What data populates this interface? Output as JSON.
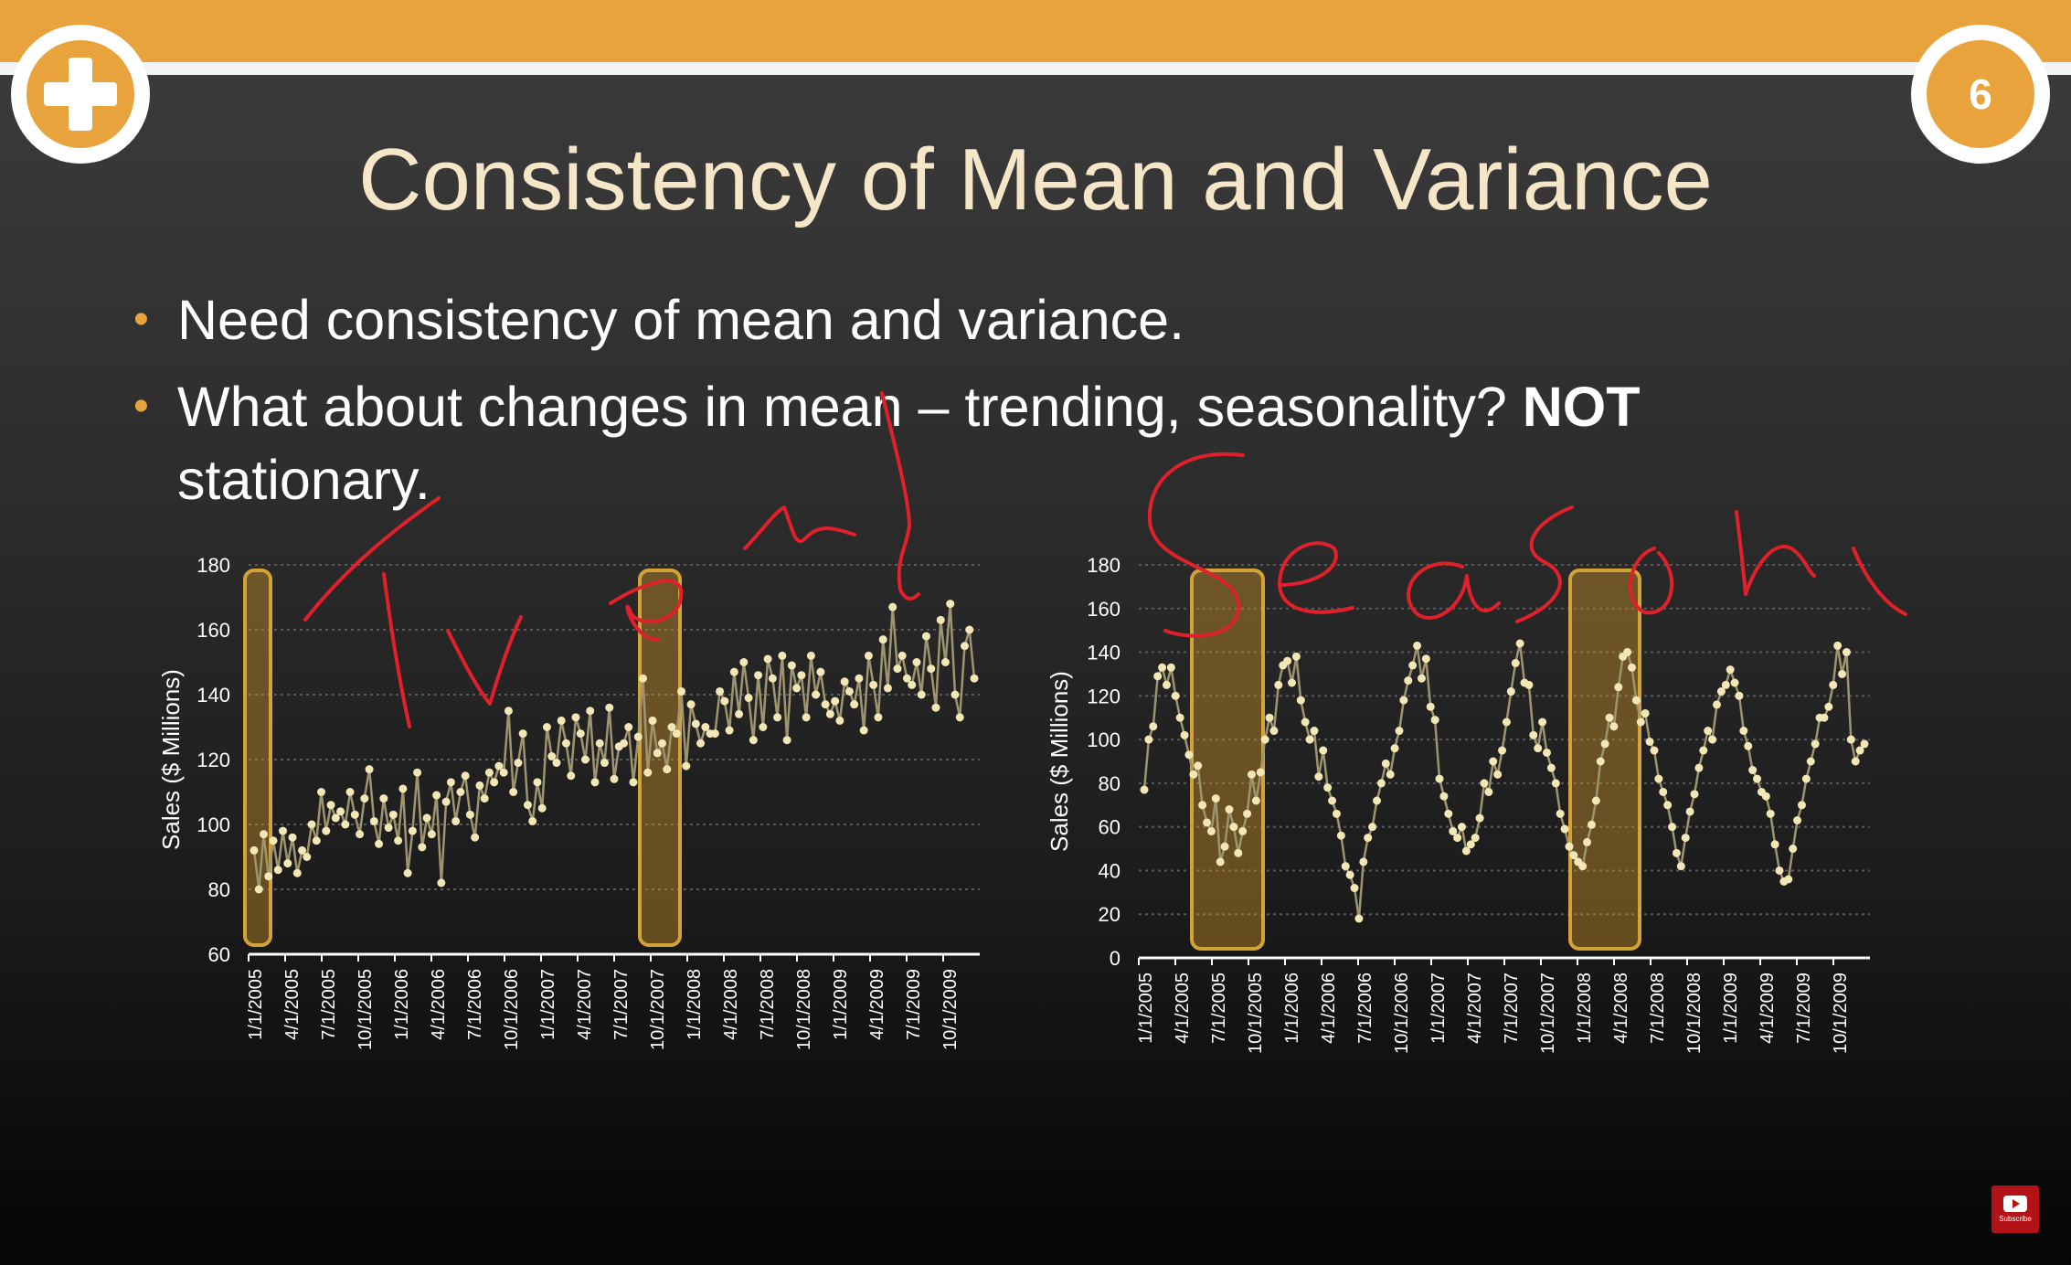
{
  "slide": {
    "number": "6",
    "title": "Consistency of Mean and Variance",
    "bullets": [
      {
        "text": "Need consistency of mean and variance."
      },
      {
        "text": "What about changes in mean – trending, seasonality? ",
        "bold": "NOT",
        "continuation": "stationary."
      }
    ],
    "icons": [
      "plus-icon",
      "youtube-subscribe-icon"
    ],
    "subscribe_label": "Subscribe",
    "handwriting": [
      "Trend",
      "Season"
    ]
  },
  "colors": {
    "accent": "#e8a33d",
    "title_text": "#f5e6c8",
    "data_line": "#9e9470",
    "data_point": "#f3e7b5",
    "highlight_fill": "rgba(224,160,40,0.38)",
    "highlight_border": "#d4a338",
    "ink": "#e0202a"
  },
  "chart_data": [
    {
      "type": "line",
      "ylabel": "Sales ($ Millions)",
      "ylim": [
        60,
        180
      ],
      "yticks": [
        60,
        80,
        100,
        120,
        140,
        160,
        180
      ],
      "xticks": [
        "1/1/2005",
        "4/1/2005",
        "7/1/2005",
        "10/1/2005",
        "1/1/2006",
        "4/1/2006",
        "7/1/2006",
        "10/1/2006",
        "1/1/2007",
        "4/1/2007",
        "7/1/2007",
        "10/1/2007",
        "1/1/2008",
        "4/1/2008",
        "7/1/2008",
        "10/1/2008",
        "1/1/2009",
        "4/1/2009",
        "7/1/2009",
        "10/1/2009"
      ],
      "grid": true,
      "highlights": [
        [
          0.0,
          0.5
        ],
        [
          10.8,
          11.7
        ]
      ],
      "values": [
        92,
        80,
        97,
        84,
        95,
        86,
        98,
        88,
        96,
        85,
        92,
        90,
        100,
        95,
        110,
        98,
        106,
        102,
        104,
        100,
        110,
        103,
        97,
        108,
        117,
        101,
        94,
        108,
        99,
        103,
        95,
        111,
        85,
        98,
        116,
        93,
        102,
        97,
        109,
        82,
        107,
        113,
        101,
        110,
        115,
        103,
        96,
        112,
        108,
        116,
        113,
        118,
        116,
        135,
        110,
        119,
        128,
        106,
        101,
        113,
        105,
        130,
        121,
        119,
        132,
        125,
        115,
        133,
        128,
        120,
        135,
        113,
        125,
        119,
        136,
        114,
        124,
        125,
        130,
        113,
        127,
        145,
        116,
        132,
        122,
        125,
        117,
        130,
        128,
        141,
        118,
        137,
        131,
        125,
        130,
        128,
        128,
        141,
        138,
        129,
        147,
        134,
        150,
        139,
        126,
        146,
        130,
        151,
        145,
        133,
        152,
        126,
        149,
        142,
        146,
        133,
        152,
        140,
        147,
        137,
        134,
        138,
        132,
        144,
        141,
        137,
        145,
        129,
        152,
        143,
        133,
        157,
        142,
        167,
        148,
        152,
        145,
        143,
        150,
        140,
        158,
        148,
        136,
        163,
        150,
        168,
        140,
        133,
        155,
        160,
        145
      ]
    },
    {
      "type": "line",
      "ylabel": "Sales ($ Millions)",
      "ylim": [
        0,
        180
      ],
      "yticks": [
        0,
        20,
        40,
        60,
        80,
        100,
        120,
        140,
        160,
        180
      ],
      "xticks": [
        "1/1/2005",
        "4/1/2005",
        "7/1/2005",
        "10/1/2005",
        "1/1/2006",
        "4/1/2006",
        "7/1/2006",
        "10/1/2006",
        "1/1/2007",
        "4/1/2007",
        "7/1/2007",
        "10/1/2007",
        "1/1/2008",
        "4/1/2008",
        "7/1/2008",
        "10/1/2008",
        "1/1/2009",
        "4/1/2009",
        "7/1/2009",
        "10/1/2009"
      ],
      "grid": true,
      "highlights": [
        [
          1.55,
          3.3
        ],
        [
          11.9,
          13.6
        ]
      ],
      "values": [
        77,
        100,
        106,
        129,
        133,
        125,
        133,
        120,
        110,
        102,
        93,
        84,
        88,
        70,
        62,
        58,
        73,
        44,
        51,
        68,
        60,
        48,
        58,
        66,
        84,
        72,
        85,
        100,
        110,
        104,
        125,
        134,
        136,
        126,
        138,
        118,
        108,
        100,
        104,
        83,
        95,
        78,
        72,
        66,
        56,
        42,
        38,
        32,
        18,
        44,
        55,
        60,
        72,
        80,
        89,
        84,
        96,
        104,
        118,
        127,
        134,
        143,
        128,
        137,
        115,
        109,
        82,
        74,
        66,
        58,
        55,
        60,
        49,
        52,
        55,
        64,
        80,
        76,
        90,
        84,
        95,
        108,
        122,
        135,
        144,
        126,
        125,
        102,
        96,
        108,
        94,
        87,
        80,
        66,
        59,
        51,
        47,
        44,
        42,
        53,
        61,
        72,
        90,
        98,
        110,
        106,
        124,
        138,
        140,
        133,
        118,
        108,
        112,
        99,
        95,
        82,
        76,
        70,
        60,
        48,
        42,
        55,
        67,
        75,
        87,
        95,
        104,
        100,
        116,
        122,
        125,
        132,
        126,
        120,
        104,
        97,
        86,
        82,
        76,
        74,
        66,
        52,
        40,
        35,
        36,
        50,
        63,
        70,
        82,
        90,
        98,
        110,
        110,
        115,
        125,
        143,
        130,
        140,
        100,
        90,
        95,
        98
      ]
    }
  ]
}
